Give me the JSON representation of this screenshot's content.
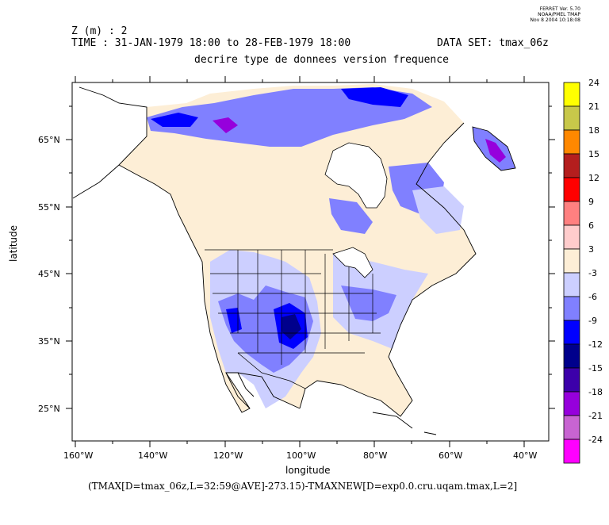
{
  "stamp": [
    "FERRET Ver. 5.70",
    "NOAA/PMEL TMAP",
    "Nov  8 2004 10:18:08"
  ],
  "header": {
    "z_line": "Z (m) : 2",
    "time_line": "TIME : 31-JAN-1979 18:00 to 28-FEB-1979 18:00",
    "dataset_line": "DATA SET: tmax_06z",
    "subtitle": "decrire type de donnees version frequence"
  },
  "map": {
    "region": "North America",
    "xlabel": "longitude",
    "ylabel": "latitude",
    "lon_ticks": [
      "160°W",
      "140°W",
      "120°W",
      "100°W",
      "80°W",
      "60°W",
      "40°W"
    ],
    "lat_ticks": [
      "65°N",
      "55°N",
      "45°N",
      "35°N",
      "25°N"
    ],
    "lon_range": [
      -162,
      -33
    ],
    "lat_range": [
      20,
      75
    ]
  },
  "colorbar": {
    "levels": [
      "24",
      "21",
      "18",
      "15",
      "12",
      "9",
      "6",
      "3",
      "-3",
      "-6",
      "-9",
      "-12",
      "-15",
      "-18",
      "-21",
      "-24"
    ],
    "colors": [
      "#ffff00",
      "#c8c84a",
      "#ff8800",
      "#b41e1e",
      "#ff0000",
      "#ff8080",
      "#ffcccc",
      "#fdeed6",
      "#cccfff",
      "#8080ff",
      "#0000ff",
      "#00008c",
      "#3c00aa",
      "#9600dc",
      "#c864d2",
      "#ff00ff"
    ]
  },
  "footer": "(TMAX[D=tmax_06z,L=32:59@AVE]-273.15)-TMAXNEW[D=exp0.0.cru.uqam.tmax,L=2]"
}
